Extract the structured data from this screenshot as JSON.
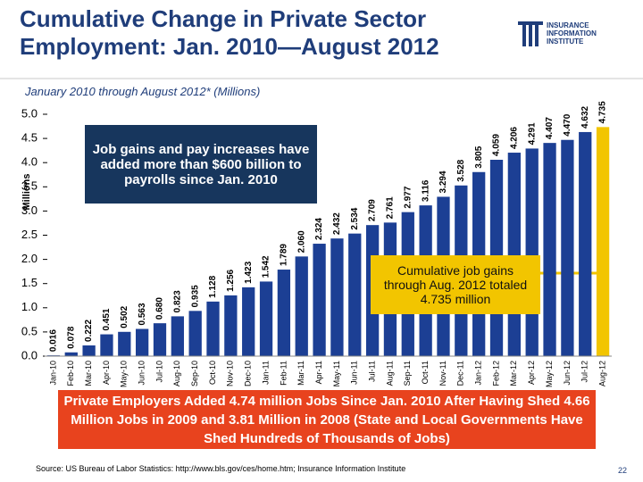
{
  "chart_data": {
    "type": "bar",
    "title": "Cumulative Change in Private Sector Employment: Jan. 2010—August 2012",
    "subtitle": "January 2010 through August 2012* (Millions)",
    "y_label": "Millions",
    "categories": [
      "Jan-10",
      "Feb-10",
      "Mar-10",
      "Apr-10",
      "May-10",
      "Jun-10",
      "Jul-10",
      "Aug-10",
      "Sep-10",
      "Oct-10",
      "Nov-10",
      "Dec-10",
      "Jan-11",
      "Feb-11",
      "Mar-11",
      "Apr-11",
      "May-11",
      "Jun-11",
      "Jul-11",
      "Aug-11",
      "Sep-11",
      "Oct-11",
      "Nov-11",
      "Dec-11",
      "Jan-12",
      "Feb-12",
      "Mar-12",
      "Apr-12",
      "May-12",
      "Jun-12",
      "Jul-12",
      "Aug-12"
    ],
    "values": [
      0.016,
      0.078,
      0.222,
      0.451,
      0.502,
      0.563,
      0.68,
      0.823,
      0.935,
      1.128,
      1.256,
      1.423,
      1.542,
      1.789,
      2.06,
      2.324,
      2.432,
      2.534,
      2.709,
      2.761,
      2.977,
      3.116,
      3.294,
      3.528,
      3.805,
      4.059,
      4.206,
      4.291,
      4.407,
      4.47,
      4.632,
      4.735
    ],
    "value_labels": [
      "0.016",
      "0.078",
      "0.222",
      "0.451",
      "0.502",
      "0.563",
      "0.680",
      "0.823",
      "0.935",
      "1.128",
      "1.256",
      "1.423",
      "1.542",
      "1.789",
      "2.060",
      "2.324",
      "2.432",
      "2.534",
      "2.709",
      "2.761",
      "2.977",
      "3.116",
      "3.294",
      "3.528",
      "3.805",
      "4.059",
      "4.206",
      "4.291",
      "4.407",
      "4.470",
      "4.632",
      "4.735"
    ],
    "colors": [
      "#1c3f94",
      "#1c3f94",
      "#1c3f94",
      "#1c3f94",
      "#1c3f94",
      "#1c3f94",
      "#1c3f94",
      "#1c3f94",
      "#1c3f94",
      "#1c3f94",
      "#1c3f94",
      "#1c3f94",
      "#1c3f94",
      "#1c3f94",
      "#1c3f94",
      "#1c3f94",
      "#1c3f94",
      "#1c3f94",
      "#1c3f94",
      "#1c3f94",
      "#1c3f94",
      "#1c3f94",
      "#1c3f94",
      "#1c3f94",
      "#1c3f94",
      "#1c3f94",
      "#1c3f94",
      "#1c3f94",
      "#1c3f94",
      "#1c3f94",
      "#1c3f94",
      "#f2c500"
    ],
    "ylim": [
      0,
      5
    ],
    "yticks": [
      {
        "value": 0,
        "label": "0.0"
      },
      0.5,
      {
        "value": 1,
        "label": "1.0"
      },
      1.5,
      {
        "value": 2,
        "label": "2.0"
      },
      2.5,
      {
        "value": 3,
        "label": "3.0"
      },
      3.5,
      {
        "value": 4,
        "label": "4.0"
      },
      4.5,
      {
        "value": 5,
        "label": "5.0"
      }
    ],
    "grid": false,
    "annotations": [
      "Job gains and pay increases have added more than $600 billion to payrolls since Jan. 2010",
      "Cumulative job gains through Aug. 2012 totaled 4.735 million"
    ]
  },
  "logo": {
    "lines": [
      "INSURANCE",
      "INFORMATION",
      "INSTITUTE"
    ]
  },
  "banner": "Private Employers Added 4.74 million Jobs Since Jan. 2010 After Having Shed 4.66 Million Jobs in 2009 and 3.81 Million in 2008 (State and Local Governments Have Shed Hundreds of Thousands of Jobs)",
  "source": "Source: US Bureau of Labor Statistics: http://www.bls.gov/ces/home.htm; Insurance Information Institute",
  "page_number": "22"
}
